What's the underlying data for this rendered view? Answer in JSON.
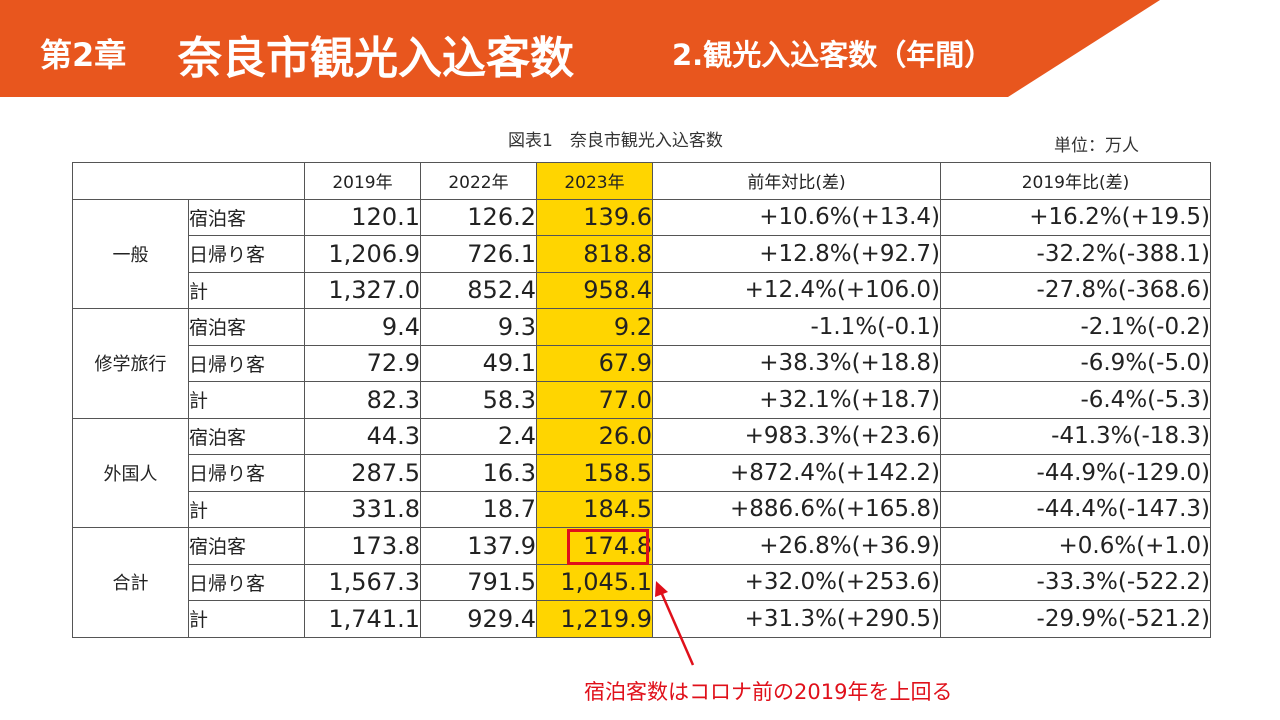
{
  "header": {
    "chapter": "第2章",
    "title": "奈良市観光入込客数",
    "subtitle": "2.観光入込客数（年間）"
  },
  "table_caption": "図表1　奈良市観光入込客数",
  "unit_label": "単位：万人",
  "columns": [
    "2019年",
    "2022年",
    "2023年",
    "前年対比(差)",
    "2019年比(差)"
  ],
  "groups": [
    {
      "name": "一般",
      "rows": [
        {
          "label": "宿泊客",
          "y2019": "120.1",
          "y2022": "126.2",
          "y2023": "139.6",
          "yoy": "+10.6%(+13.4)",
          "vs2019": "+16.2%(+19.5)"
        },
        {
          "label": "日帰り客",
          "y2019": "1,206.9",
          "y2022": "726.1",
          "y2023": "818.8",
          "yoy": "+12.8%(+92.7)",
          "vs2019": "-32.2%(-388.1)"
        },
        {
          "label": "計",
          "y2019": "1,327.0",
          "y2022": "852.4",
          "y2023": "958.4",
          "yoy": "+12.4%(+106.0)",
          "vs2019": "-27.8%(-368.6)"
        }
      ]
    },
    {
      "name": "修学旅行",
      "rows": [
        {
          "label": "宿泊客",
          "y2019": "9.4",
          "y2022": "9.3",
          "y2023": "9.2",
          "yoy": "-1.1%(-0.1)",
          "vs2019": "-2.1%(-0.2)"
        },
        {
          "label": "日帰り客",
          "y2019": "72.9",
          "y2022": "49.1",
          "y2023": "67.9",
          "yoy": "+38.3%(+18.8)",
          "vs2019": "-6.9%(-5.0)"
        },
        {
          "label": "計",
          "y2019": "82.3",
          "y2022": "58.3",
          "y2023": "77.0",
          "yoy": "+32.1%(+18.7)",
          "vs2019": "-6.4%(-5.3)"
        }
      ]
    },
    {
      "name": "外国人",
      "rows": [
        {
          "label": "宿泊客",
          "y2019": "44.3",
          "y2022": "2.4",
          "y2023": "26.0",
          "yoy": "+983.3%(+23.6)",
          "vs2019": "-41.3%(-18.3)"
        },
        {
          "label": "日帰り客",
          "y2019": "287.5",
          "y2022": "16.3",
          "y2023": "158.5",
          "yoy": "+872.4%(+142.2)",
          "vs2019": "-44.9%(-129.0)"
        },
        {
          "label": "計",
          "y2019": "331.8",
          "y2022": "18.7",
          "y2023": "184.5",
          "yoy": "+886.6%(+165.8)",
          "vs2019": "-44.4%(-147.3)"
        }
      ]
    },
    {
      "name": "合計",
      "rows": [
        {
          "label": "宿泊客",
          "y2019": "173.8",
          "y2022": "137.9",
          "y2023": "174.8",
          "yoy": "+26.8%(+36.9)",
          "vs2019": "+0.6%(+1.0)"
        },
        {
          "label": "日帰り客",
          "y2019": "1,567.3",
          "y2022": "791.5",
          "y2023": "1,045.1",
          "yoy": "+32.0%(+253.6)",
          "vs2019": "-33.3%(-522.2)"
        },
        {
          "label": "計",
          "y2019": "1,741.1",
          "y2022": "929.4",
          "y2023": "1,219.9",
          "yoy": "+31.3%(+290.5)",
          "vs2019": "-29.9%(-521.2)"
        }
      ]
    }
  ],
  "callout": "宿泊客数はコロナ前の2019年を上回る",
  "colors": {
    "banner": "#e8561e",
    "highlight": "#ffd500",
    "accent_red": "#e0101a"
  }
}
